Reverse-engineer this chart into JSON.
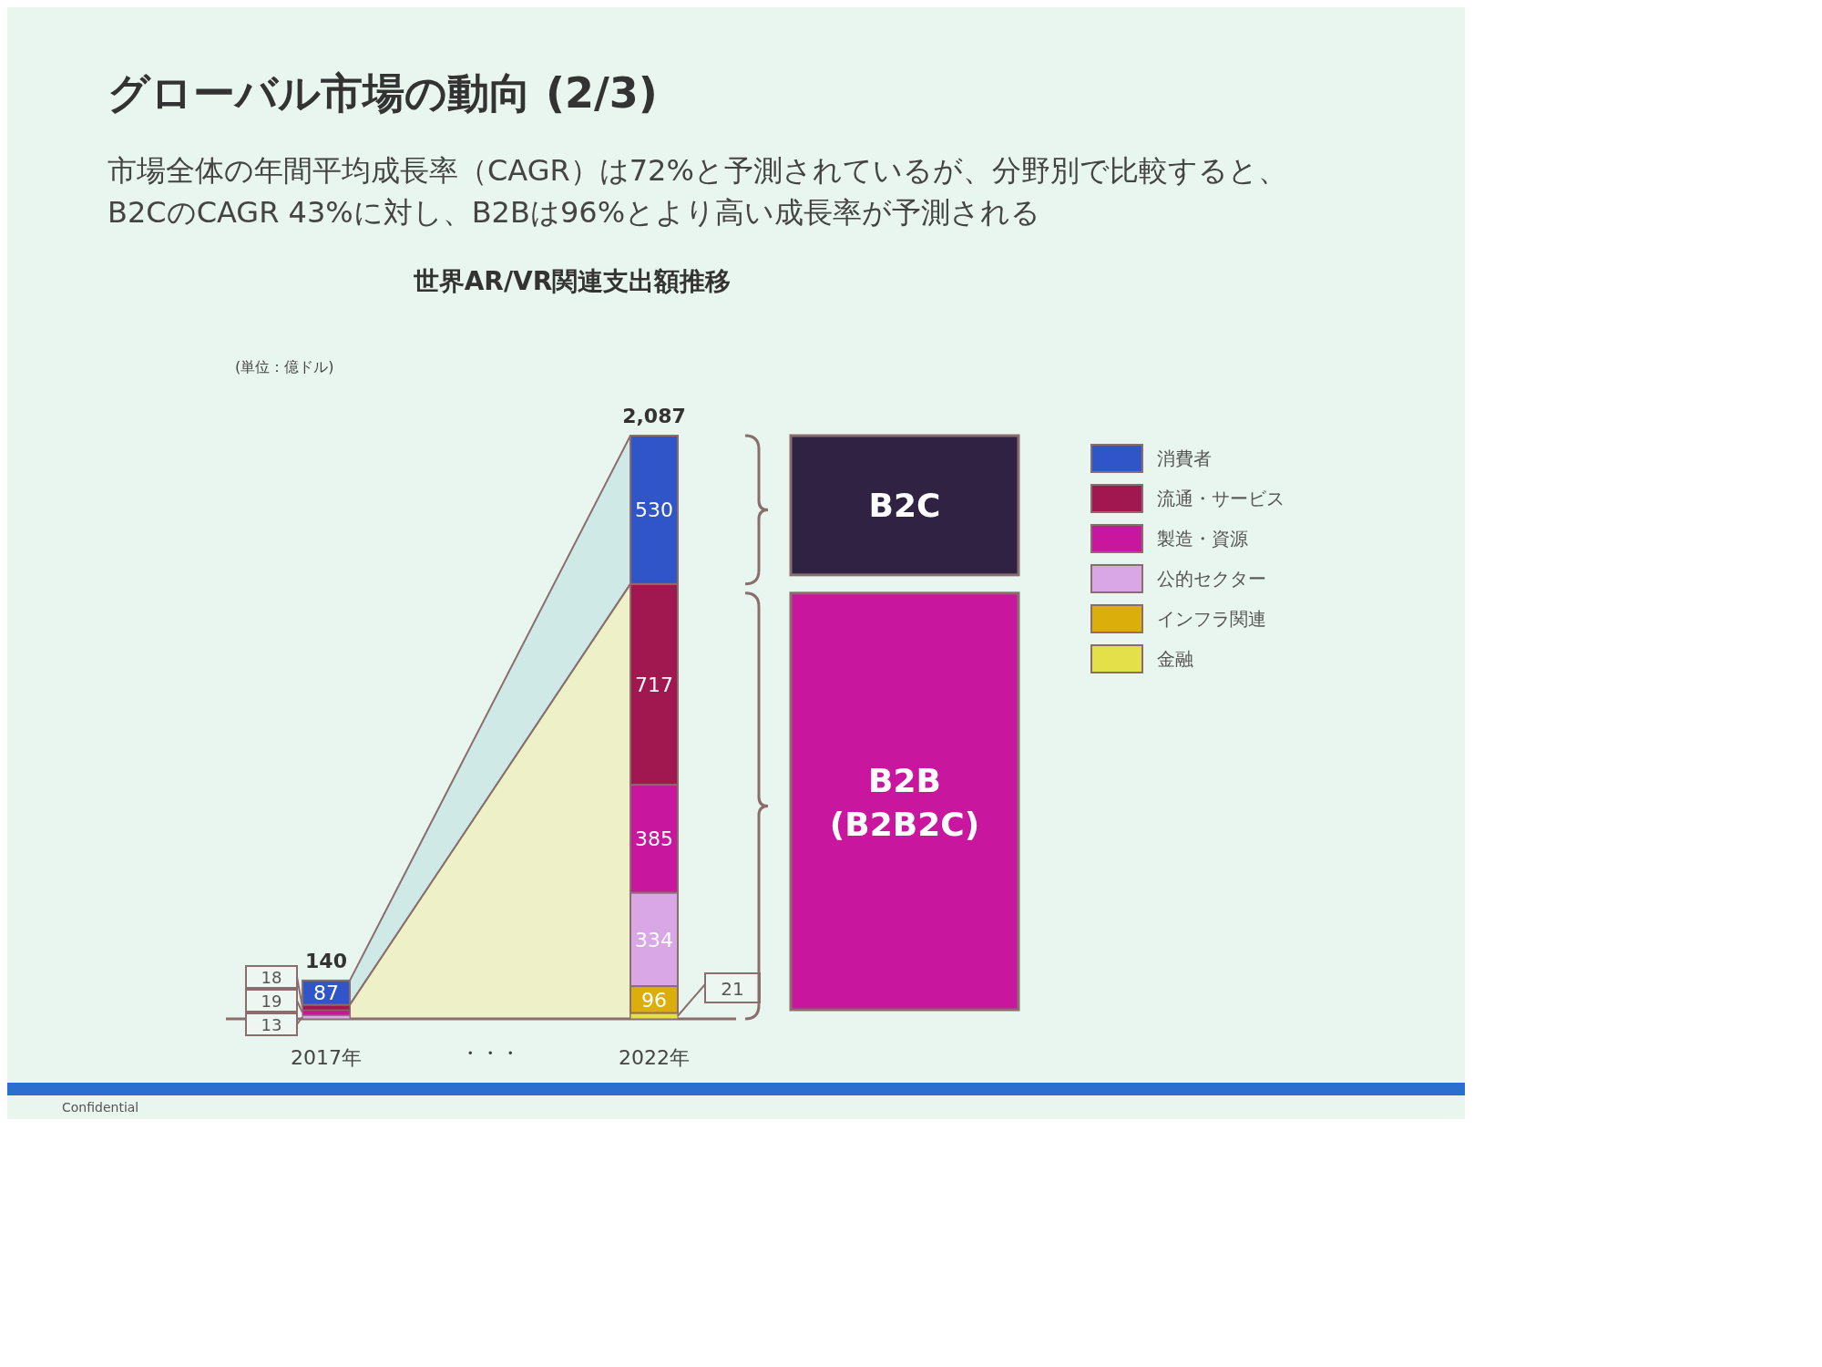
{
  "chart_data": {
    "type": "bar",
    "stacked": true,
    "title": "グローバル市場の動向 (2/3)",
    "subtitle": "市場全体の年間平均成長率（CAGR）は72%と予測されているが、分野別で比較すると、B2CのCAGR 43%に対し、B2Bは96%とより高い成長率が予測される",
    "ylabel": "(単位：億ドル)",
    "categories": [
      "2017年",
      "2022年"
    ],
    "series": [
      {
        "name": "金融",
        "color": "#e3e04a",
        "values": [
          null,
          21
        ]
      },
      {
        "name": "インフラ関連",
        "color": "#dcae0c",
        "values": [
          null,
          96
        ]
      },
      {
        "name": "公的セクター",
        "color": "#d9a6e6",
        "values": [
          13,
          334
        ]
      },
      {
        "name": "製造・資源",
        "color": "#c8169e",
        "values": [
          19,
          385
        ]
      },
      {
        "name": "流通・サービス",
        "color": "#a0184f",
        "values": [
          18,
          717
        ]
      },
      {
        "name": "消費者",
        "color": "#2f55c8",
        "values": [
          87,
          530
        ]
      }
    ],
    "data_labels": true,
    "legend": "right",
    "annotations": [
      "世界AR/VR関連支出額推移",
      "・・・",
      "B2C",
      "B2B\n(B2B2C)",
      "Confidential",
      "140",
      "2,087"
    ]
  }
}
